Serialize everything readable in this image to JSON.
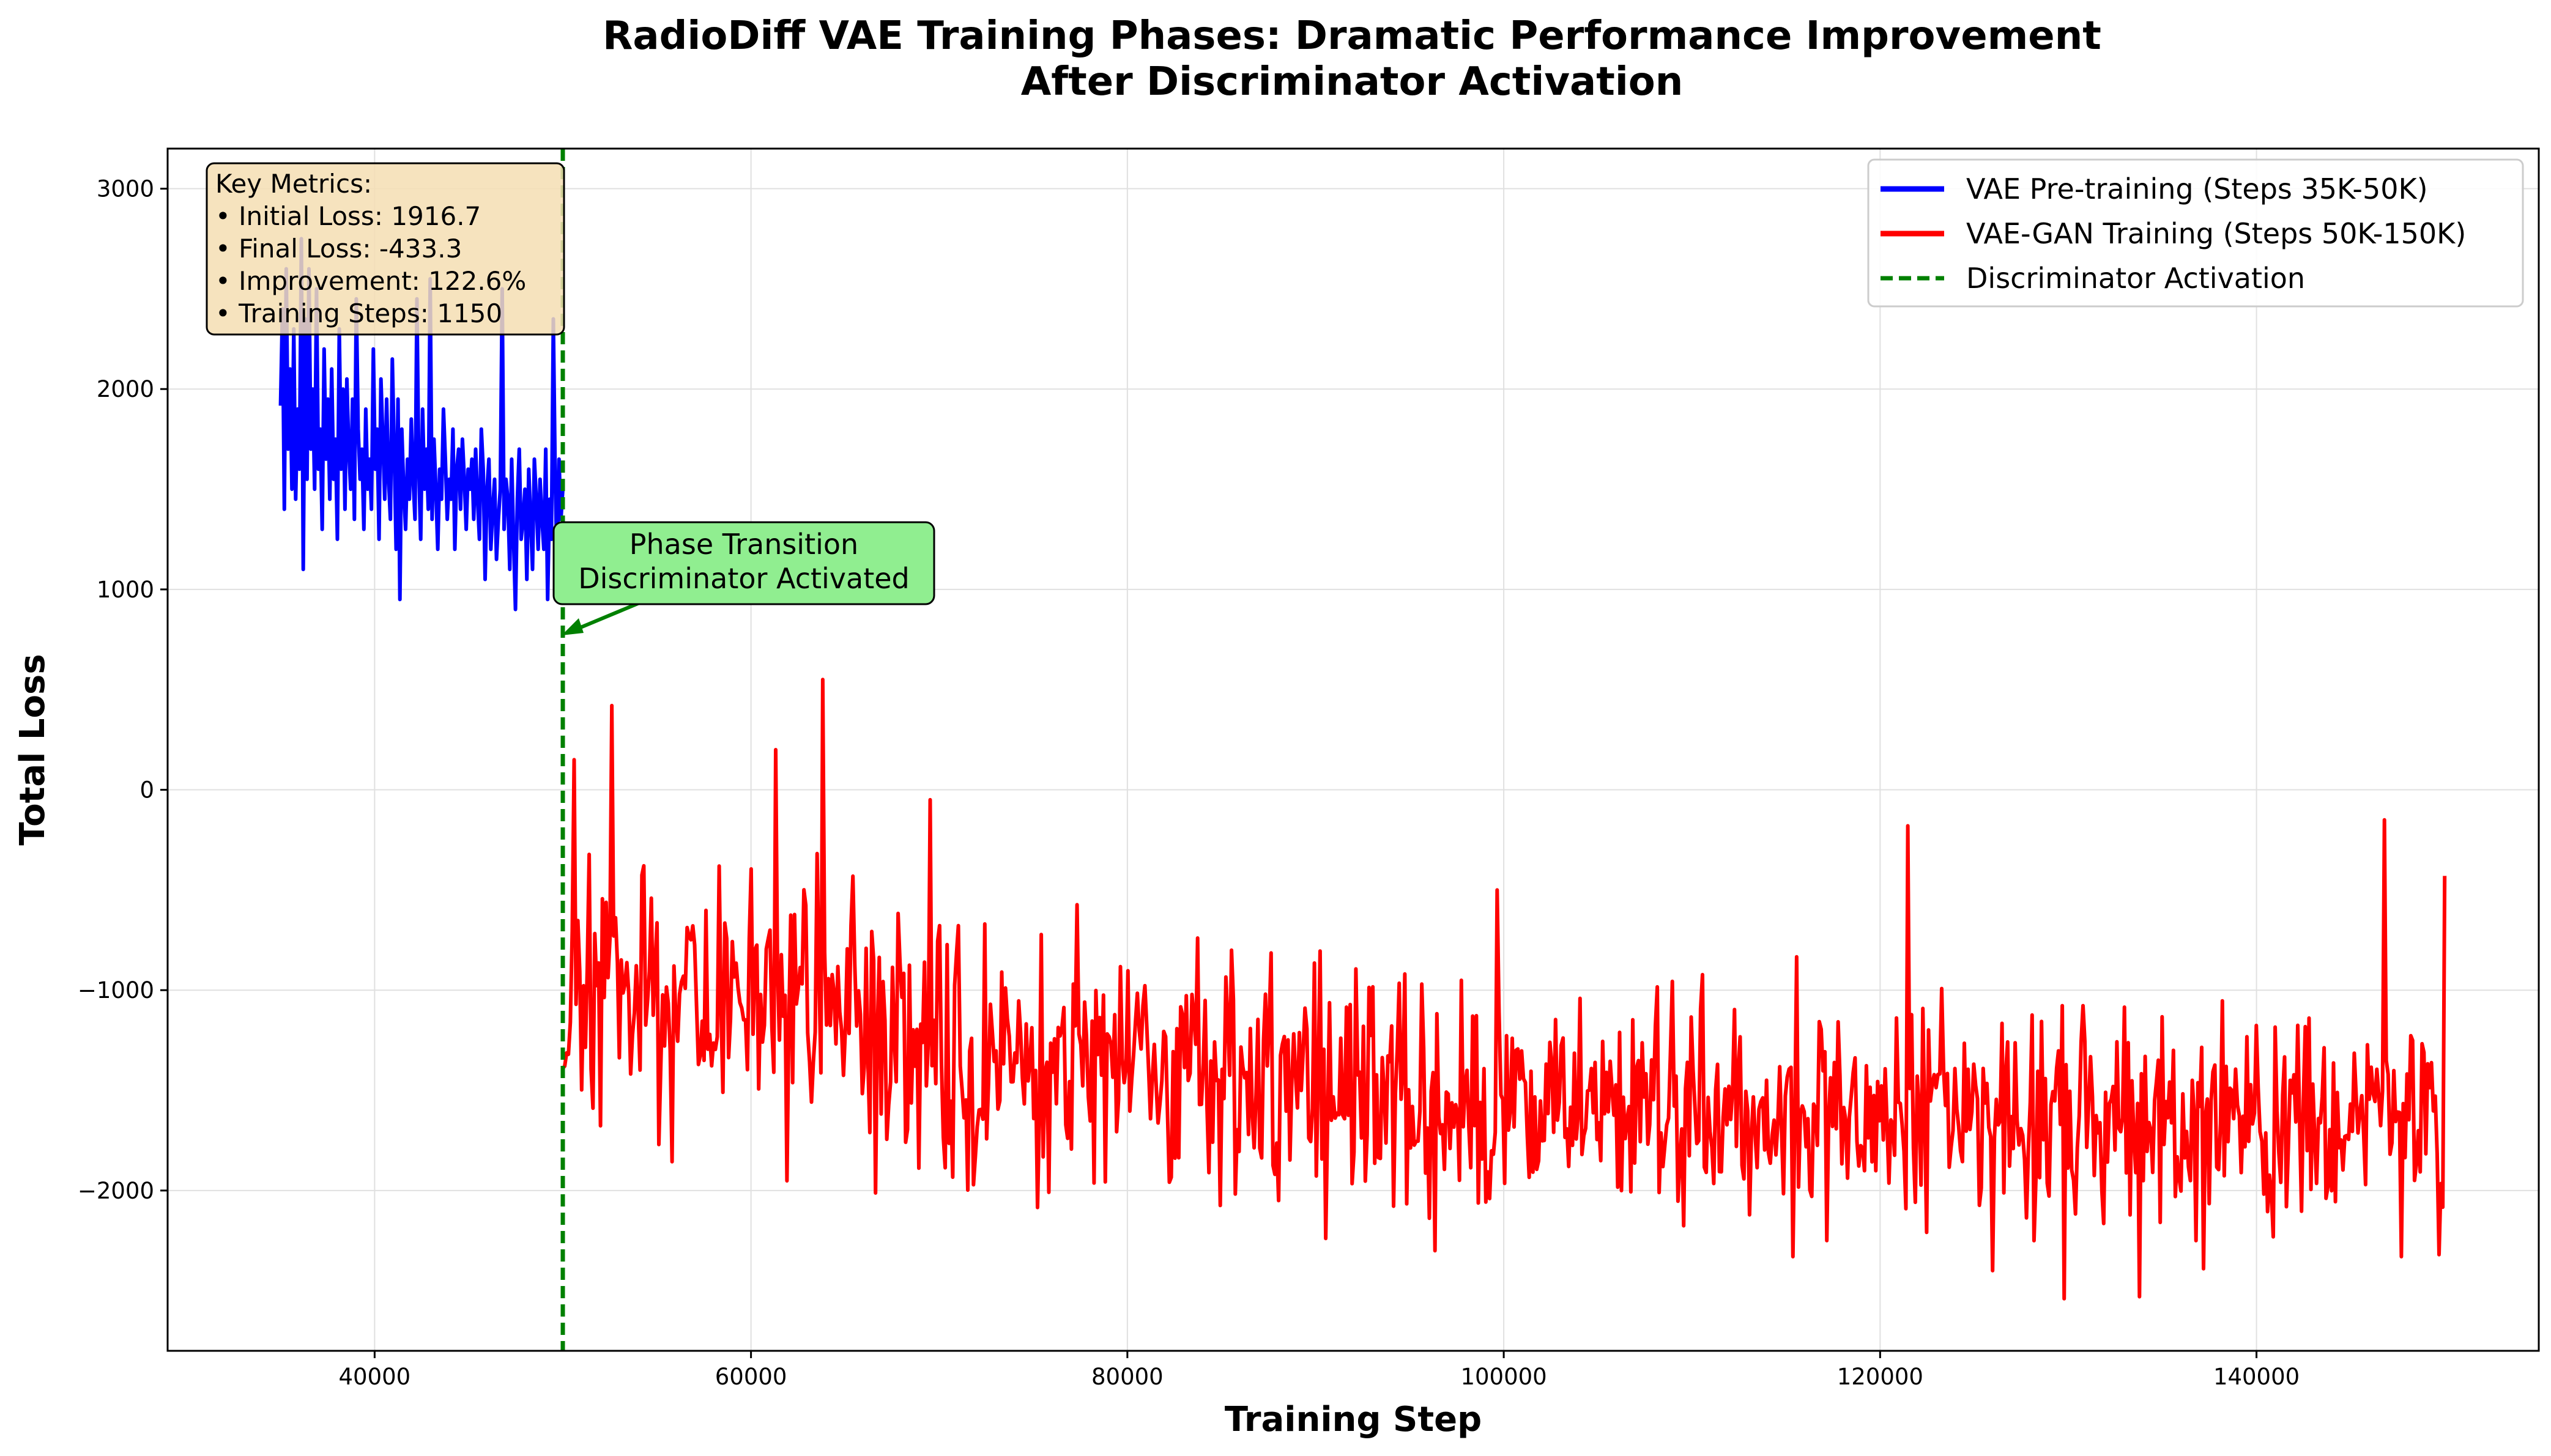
{
  "chart_data": {
    "type": "line",
    "title": [
      "RadioDiff VAE Training Phases: Dramatic Performance Improvement",
      "After Discriminator Activation"
    ],
    "xlabel": "Training Step",
    "ylabel": "Total Loss",
    "xlim": [
      29000,
      155000
    ],
    "ylim": [
      -2800,
      3200
    ],
    "x_ticks": [
      40000,
      60000,
      80000,
      100000,
      120000,
      140000
    ],
    "x_tick_labels": [
      "40000",
      "60000",
      "80000",
      "100000",
      "120000",
      "140000"
    ],
    "y_ticks": [
      3000,
      2000,
      1000,
      0,
      -1000,
      -2000
    ],
    "y_tick_labels": [
      "3000",
      "2000",
      "1000",
      "0",
      "−1000",
      "−2000"
    ],
    "grid": true,
    "legend_position": "top-right",
    "series": [
      {
        "name": "VAE Pre-training (Steps 35K-50K)",
        "color": "#0000ff",
        "x_range": [
          35000,
          50000
        ],
        "points": 150,
        "values": [
          1917,
          2400,
          1400,
          2600,
          1700,
          2100,
          1500,
          2300,
          1450,
          1900,
          1600,
          2750,
          1100,
          2350,
          1550,
          2600,
          1700,
          2000,
          1500,
          2500,
          1600,
          1800,
          1300,
          2200,
          1650,
          1950,
          1450,
          2100,
          1550,
          1750,
          1250,
          2300,
          1600,
          2000,
          1400,
          2050,
          1700,
          1500,
          1950,
          1350,
          2450,
          1800,
          1550,
          1700,
          1300,
          1900,
          1500,
          1650,
          1400,
          2200,
          1600,
          1800,
          1250,
          2050,
          1750,
          1450,
          1950,
          1550,
          1350,
          2150,
          1700,
          1200,
          1950,
          950,
          1800,
          1500,
          1300,
          1650,
          1450,
          1850,
          1550,
          1350,
          2450,
          1600,
          1250,
          1900,
          1500,
          1700,
          1400,
          2550,
          1350,
          1750,
          1500,
          1200,
          1600,
          1450,
          1900,
          1650,
          1350,
          1550,
          1450,
          1800,
          1200,
          1600,
          1700,
          1400,
          1750,
          1550,
          1300,
          1600,
          1500,
          1650,
          1350,
          1700,
          1450,
          1250,
          1800,
          1600,
          1050,
          1500,
          1650,
          1200,
          1400,
          1550,
          1150,
          1350,
          1500,
          2500,
          1300,
          1550,
          1450,
          1100,
          1650,
          1250,
          900,
          1450,
          1700,
          1250,
          1350,
          1500,
          1050,
          1600,
          1350,
          1100,
          1650,
          1450,
          1200,
          1550,
          1350,
          1200,
          1700,
          950,
          1450,
          1250,
          2350,
          1550,
          1100,
          1650,
          1350,
          1500
        ]
      },
      {
        "name": "VAE-GAN Training (Steps 50K-150K)",
        "color": "#ff0000",
        "x_range": [
          50000,
          150000
        ],
        "points": 1000,
        "anchors": [
          [
            50000,
            -900
          ],
          [
            56000,
            -1000
          ],
          [
            62000,
            -1100
          ],
          [
            70000,
            -1300
          ],
          [
            80000,
            -1400
          ],
          [
            90000,
            -1500
          ],
          [
            100000,
            -1550
          ],
          [
            115000,
            -1600
          ],
          [
            130000,
            -1650
          ],
          [
            140000,
            -1650
          ],
          [
            150000,
            -1650
          ]
        ],
        "noise_start": 420,
        "noise_end": 280,
        "peaks": [
          [
            52600,
            420
          ],
          [
            63800,
            550
          ],
          [
            61300,
            200
          ],
          [
            50600,
            150
          ],
          [
            69500,
            -50
          ],
          [
            99600,
            -500
          ],
          [
            121500,
            -180
          ],
          [
            146800,
            -150
          ],
          [
            150000,
            -430
          ]
        ],
        "troughs": [
          [
            50300,
            -1320
          ],
          [
            88000,
            -2050
          ],
          [
            96300,
            -2300
          ],
          [
            115400,
            -2330
          ],
          [
            129800,
            -2540
          ],
          [
            133800,
            -2530
          ],
          [
            126000,
            -2400
          ],
          [
            137200,
            -2390
          ],
          [
            147700,
            -2330
          ],
          [
            149700,
            -2320
          ]
        ]
      }
    ],
    "vertical_line": {
      "name": "Discriminator Activation",
      "x": 50000,
      "color": "#008000",
      "style": "dashed"
    },
    "annotations": {
      "key_metrics": {
        "title": "Key Metrics:",
        "lines": [
          "• Initial Loss: 1916.7",
          "• Final Loss: -433.3",
          "• Improvement: 122.6%",
          "• Training Steps: 1150"
        ]
      },
      "transition": {
        "lines": [
          "Phase Transition",
          "Discriminator Activated"
        ],
        "arrow_target": [
          50000,
          780
        ]
      }
    }
  },
  "colors": {
    "blue": "#0000ff",
    "red": "#ff0000",
    "green": "#008000",
    "metrics_box": "#f5deb3",
    "annotation_box": "#90ee90",
    "grid": "#e0e0e0"
  }
}
